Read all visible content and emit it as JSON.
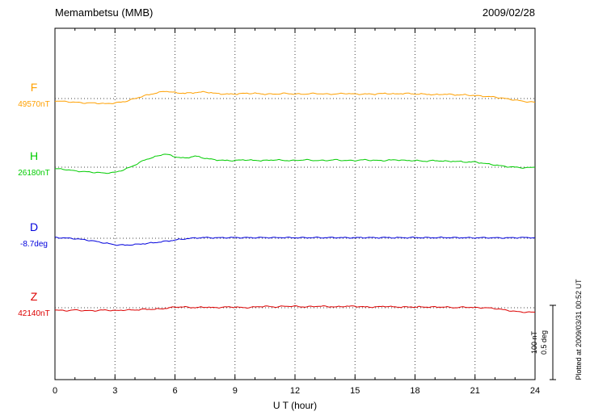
{
  "chart_data": {
    "type": "line",
    "title": "Memambetsu (MMB)",
    "date": "2009/02/28",
    "xlabel": "U T (hour)",
    "xlim": [
      0,
      24
    ],
    "x_ticks": [
      0,
      3,
      6,
      9,
      12,
      15,
      18,
      21,
      24
    ],
    "grid": "dotted vertical gridlines every 3 hours; dotted horizontal baseline per trace",
    "legend_position": "left-outside",
    "scale": {
      "nt_label": "100 nT",
      "deg_label": "0.5 deg"
    },
    "plotted_at": "Plotted at 2009/03/31 00:52 UT",
    "x_hours": [
      0,
      0.5,
      1,
      1.5,
      2,
      2.5,
      3,
      3.5,
      4,
      4.5,
      5,
      5.5,
      6,
      6.5,
      7,
      7.5,
      8,
      8.5,
      9,
      9.5,
      10,
      10.5,
      11,
      11.5,
      12,
      12.5,
      13,
      13.5,
      14,
      14.5,
      15,
      15.5,
      16,
      16.5,
      17,
      17.5,
      18,
      18.5,
      19,
      19.5,
      20,
      20.5,
      21,
      21.5,
      22,
      22.5,
      23,
      23.5,
      24
    ],
    "series": [
      {
        "name": "F",
        "unit": "nT",
        "baseline_label": "49570nT",
        "color": "#ffa000",
        "offsets": [
          -3,
          -4,
          -5,
          -6,
          -6,
          -7,
          -6,
          -4,
          0,
          4,
          7,
          10,
          8,
          7,
          8,
          9,
          7,
          6,
          6,
          7,
          7,
          6,
          6,
          7,
          6,
          6,
          7,
          6,
          6,
          7,
          6,
          6,
          6,
          7,
          6,
          7,
          6,
          6,
          5,
          6,
          5,
          5,
          4,
          3,
          2,
          0,
          -2,
          -4,
          -5
        ]
      },
      {
        "name": "H",
        "unit": "nT",
        "baseline_label": "26180nT",
        "color": "#00cc00",
        "offsets": [
          -2,
          -3,
          -5,
          -6,
          -7,
          -8,
          -7,
          -3,
          3,
          10,
          14,
          18,
          14,
          12,
          15,
          12,
          10,
          9,
          9,
          10,
          9,
          9,
          10,
          9,
          9,
          10,
          9,
          9,
          10,
          9,
          9,
          10,
          9,
          9,
          10,
          9,
          9,
          8,
          9,
          8,
          8,
          7,
          7,
          5,
          3,
          1,
          0,
          -1,
          0
        ]
      },
      {
        "name": "D",
        "unit": "deg",
        "baseline_label": "-8.7deg",
        "color": "#0000dd",
        "offsets": [
          0.005,
          0.002,
          -0.003,
          -0.01,
          -0.02,
          -0.032,
          -0.044,
          -0.046,
          -0.042,
          -0.036,
          -0.029,
          -0.021,
          -0.012,
          -0.004,
          0.002,
          0.005,
          0.003,
          0.004,
          0.005,
          0.004,
          0.004,
          0.005,
          0.004,
          0.005,
          0.004,
          0.004,
          0.005,
          0.004,
          0.005,
          0.004,
          0.004,
          0.005,
          0.004,
          0.005,
          0.004,
          0.004,
          0.005,
          0.004,
          0.004,
          0.005,
          0.004,
          0.004,
          0.003,
          0.004,
          0.003,
          0.003,
          0.004,
          0.005,
          0.004
        ]
      },
      {
        "name": "Z",
        "unit": "nT",
        "baseline_label": "42140nT",
        "color": "#dd0000",
        "offsets": [
          -3,
          -4,
          -3,
          -4,
          -4,
          -3,
          -4,
          -3,
          -3,
          -2,
          -2,
          -1,
          1,
          1,
          0,
          1,
          0,
          1,
          1,
          0,
          1,
          2,
          1,
          2,
          2,
          1,
          2,
          2,
          1,
          2,
          2,
          1,
          1,
          2,
          1,
          1,
          1,
          1,
          1,
          1,
          0,
          1,
          0,
          0,
          -1,
          -3,
          -5,
          -6,
          -6
        ]
      }
    ]
  }
}
